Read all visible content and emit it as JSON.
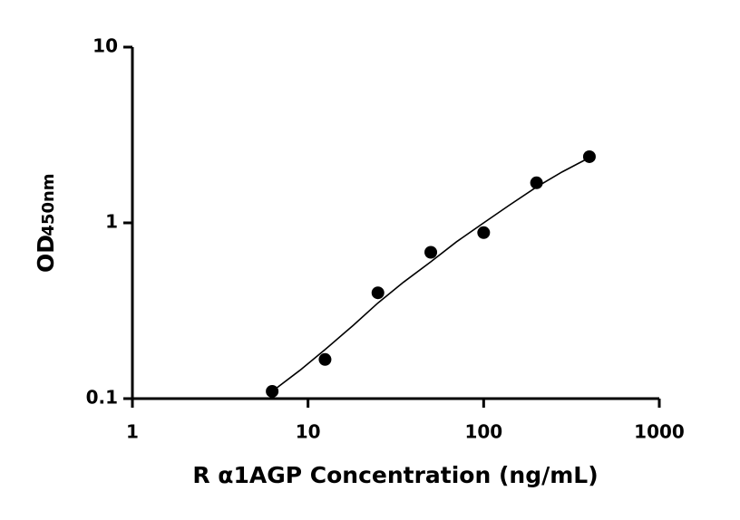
{
  "chart_data": {
    "type": "scatter",
    "x_label": "R α1AGP Concentration (ng/mL)",
    "y_label": "OD",
    "y_label_sub": "450nm",
    "xscale": "log",
    "yscale": "log",
    "xlim": [
      1,
      1000
    ],
    "xticks": [
      1,
      10,
      100,
      1000
    ],
    "ylim": [
      0.1,
      10
    ],
    "yticks": [
      0.1,
      1,
      10
    ],
    "series": [
      {
        "color": "#000000",
        "x": [
          6.25,
          12.5,
          25,
          50,
          100,
          200,
          400
        ],
        "values": [
          0.11,
          0.167,
          0.4,
          0.68,
          0.88,
          1.69,
          2.38
        ]
      }
    ],
    "fit": {
      "color": "#000000",
      "x": [
        6.25,
        9,
        12.5,
        18,
        25,
        35,
        50,
        70,
        100,
        140,
        200,
        280,
        400
      ],
      "values": [
        0.11,
        0.145,
        0.19,
        0.26,
        0.35,
        0.46,
        0.6,
        0.78,
        1.0,
        1.26,
        1.6,
        1.95,
        2.35
      ]
    }
  }
}
